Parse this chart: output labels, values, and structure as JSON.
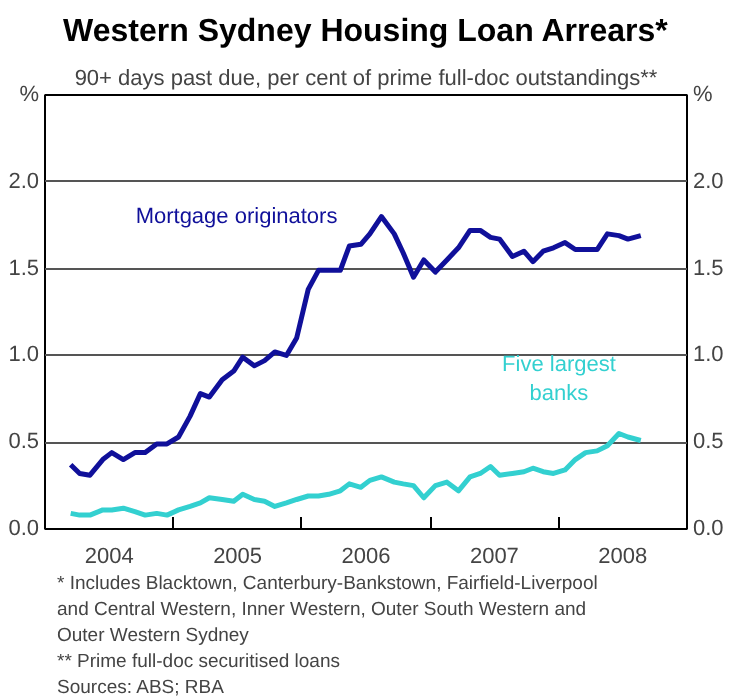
{
  "chart_data": {
    "type": "line",
    "title": "Western Sydney Housing Loan Arrears*",
    "subtitle": "90+ days past due, per cent of prime full-doc outstandings**",
    "ylabel": "%",
    "y2label": "%",
    "x": [
      2004.2,
      2004.27,
      2004.35,
      2004.45,
      2004.52,
      2004.61,
      2004.7,
      2004.78,
      2004.87,
      2004.95,
      2005.04,
      2005.13,
      2005.21,
      2005.28,
      2005.38,
      2005.47,
      2005.54,
      2005.63,
      2005.71,
      2005.79,
      2005.88,
      2005.96,
      2006.05,
      2006.13,
      2006.21,
      2006.3,
      2006.37,
      2006.46,
      2006.53,
      2006.62,
      2006.72,
      2006.79,
      2006.87,
      2006.95,
      2007.04,
      2007.13,
      2007.22,
      2007.31,
      2007.39,
      2007.47,
      2007.54,
      2007.64,
      2007.73,
      2007.8,
      2007.88,
      2007.96,
      2008.05,
      2008.13,
      2008.21,
      2008.3,
      2008.38,
      2008.47,
      2008.54,
      2008.64
    ],
    "series": [
      {
        "name": "Mortgage originators",
        "color": "#10109a",
        "values": [
          0.37,
          0.32,
          0.31,
          0.4,
          0.44,
          0.4,
          0.44,
          0.44,
          0.49,
          0.49,
          0.53,
          0.65,
          0.78,
          0.76,
          0.86,
          0.91,
          0.99,
          0.94,
          0.97,
          1.02,
          1.0,
          1.1,
          1.38,
          1.49,
          1.49,
          1.49,
          1.63,
          1.64,
          1.7,
          1.8,
          1.7,
          1.59,
          1.45,
          1.55,
          1.48,
          1.55,
          1.62,
          1.72,
          1.72,
          1.68,
          1.67,
          1.57,
          1.6,
          1.54,
          1.6,
          1.62,
          1.65,
          1.61,
          1.61,
          1.61,
          1.7,
          1.69,
          1.67,
          1.69
        ]
      },
      {
        "name": "Five largest banks",
        "color": "#33d0d0",
        "values": [
          0.09,
          0.08,
          0.08,
          0.11,
          0.11,
          0.12,
          0.1,
          0.08,
          0.09,
          0.08,
          0.11,
          0.13,
          0.15,
          0.18,
          0.17,
          0.16,
          0.2,
          0.17,
          0.16,
          0.13,
          0.15,
          0.17,
          0.19,
          0.19,
          0.2,
          0.22,
          0.26,
          0.24,
          0.28,
          0.3,
          0.27,
          0.26,
          0.25,
          0.18,
          0.25,
          0.27,
          0.22,
          0.3,
          0.32,
          0.36,
          0.31,
          0.32,
          0.33,
          0.35,
          0.33,
          0.32,
          0.34,
          0.4,
          0.44,
          0.45,
          0.48,
          0.55,
          0.53,
          0.51
        ]
      }
    ],
    "xlim": [
      2004,
      2009
    ],
    "xticks": [
      {
        "value": 2004.5,
        "label": "2004"
      },
      {
        "value": 2005,
        "label": null
      },
      {
        "value": 2005.5,
        "label": "2005"
      },
      {
        "value": 2006,
        "label": null
      },
      {
        "value": 2006.5,
        "label": "2006"
      },
      {
        "value": 2007,
        "label": null
      },
      {
        "value": 2007.5,
        "label": "2007"
      },
      {
        "value": 2008,
        "label": null
      },
      {
        "value": 2008.5,
        "label": "2008"
      }
    ],
    "ylim": [
      0,
      2.5
    ],
    "yticks": [
      {
        "value": 0,
        "label": "0.0"
      },
      {
        "value": 0.5,
        "label": "0.5"
      },
      {
        "value": 1,
        "label": "1.0"
      },
      {
        "value": 1.5,
        "label": "1.5"
      },
      {
        "value": 2,
        "label": "2.0"
      }
    ],
    "y2lim": [
      0,
      2.5
    ],
    "y2ticks": [
      {
        "value": 0,
        "label": "0.0"
      },
      {
        "value": 0.5,
        "label": "0.5"
      },
      {
        "value": 1,
        "label": "1.0"
      },
      {
        "value": 1.5,
        "label": "1.5"
      },
      {
        "value": 2,
        "label": "2.0"
      }
    ],
    "grid": "y",
    "line_style": "solid",
    "annotations": [
      "*    Includes Blacktown, Canterbury-Bankstown, Fairfield-Liverpool and Central Western, Inner Western, Outer South Western and Outer Western Sydney",
      "**   Prime full-doc securitised loans",
      "Sources: ABS; RBA"
    ]
  }
}
